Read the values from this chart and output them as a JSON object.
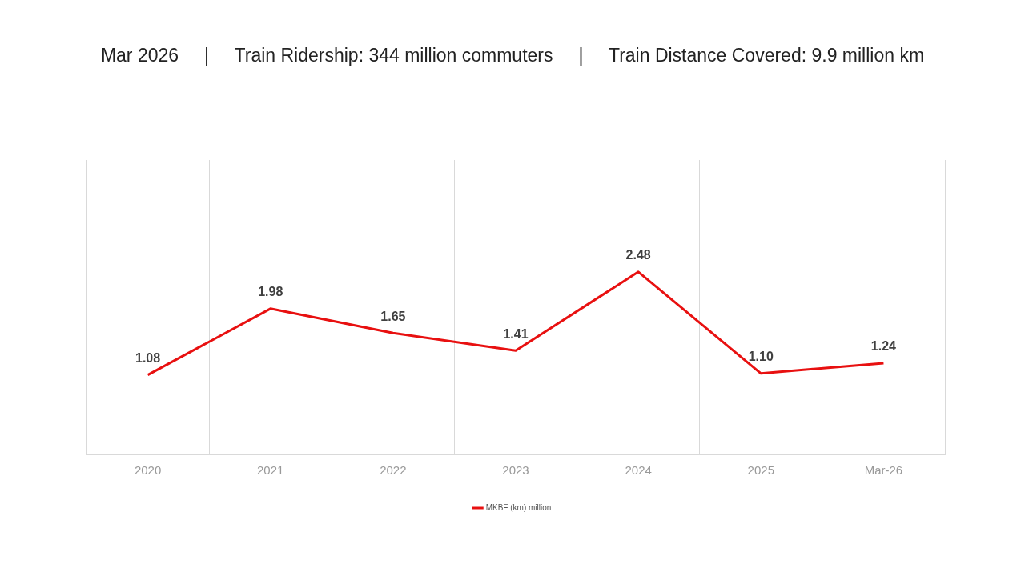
{
  "chart_data": {
    "type": "line",
    "title": "Mar 2026     |     Train Ridership: 344 million commuters     |     Train Distance Covered: 9.9 million km",
    "categories": [
      "2020",
      "2021",
      "2022",
      "2023",
      "2024",
      "2025",
      "Mar-26"
    ],
    "series": [
      {
        "name": "MKBF (km) million",
        "color": "#e81010",
        "values": [
          1.08,
          1.98,
          1.65,
          1.41,
          2.48,
          1.1,
          1.24
        ],
        "value_labels": [
          "1.08",
          "1.98",
          "1.65",
          "1.41",
          "2.48",
          "1.10",
          "1.24"
        ]
      }
    ],
    "ylim": [
      0,
      4
    ],
    "tick_labels": "x",
    "grid": "x",
    "legend": "bottom",
    "marker": "none",
    "line_style": "solid"
  }
}
